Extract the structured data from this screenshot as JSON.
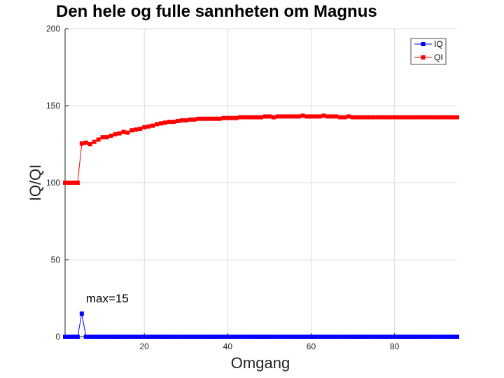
{
  "chart_data": {
    "type": "line",
    "title": "Den hele og fulle sannheten om Magnus",
    "xlabel": "Omgang",
    "ylabel": "IQ/QI",
    "xlim": [
      1,
      95
    ],
    "ylim": [
      0,
      200
    ],
    "xticks": [
      20,
      40,
      60,
      80
    ],
    "yticks": [
      0,
      50,
      100,
      150,
      200
    ],
    "grid": true,
    "legend_position": "top-right",
    "annotation": {
      "text": "max=15",
      "x": 5,
      "y": 15
    },
    "series": [
      {
        "name": "IQ",
        "color": "#0000ff",
        "marker": "square",
        "values": [
          0,
          0,
          0,
          0,
          15,
          0,
          0,
          0,
          0,
          0,
          0,
          0,
          0,
          0,
          0,
          0,
          0,
          0,
          0,
          0,
          0,
          0,
          0,
          0,
          0,
          0,
          0,
          0,
          0,
          0,
          0,
          0,
          0,
          0,
          0,
          0,
          0,
          0,
          0,
          0,
          0,
          0,
          0,
          0,
          0,
          0,
          0,
          0,
          0,
          0,
          0,
          0,
          0,
          0,
          0,
          0,
          0,
          0,
          0,
          0,
          0,
          0,
          0,
          0,
          0,
          0,
          0,
          0,
          0,
          0,
          0,
          0,
          0,
          0,
          0,
          0,
          0,
          0,
          0,
          0,
          0,
          0,
          0,
          0,
          0,
          0,
          0,
          0,
          0,
          0,
          0,
          0,
          0,
          0,
          0
        ]
      },
      {
        "name": "QI",
        "color": "#ff0000",
        "marker": "square",
        "values": [
          100,
          100,
          100,
          100,
          125.5,
          126,
          125,
          126.5,
          128,
          129.5,
          129.5,
          130.5,
          131.5,
          132,
          133,
          132.5,
          134,
          134.5,
          135,
          136,
          136.5,
          137,
          138,
          138.5,
          139,
          139.5,
          139.5,
          140,
          140.5,
          140.5,
          141,
          141,
          141.5,
          141.5,
          141.5,
          141.5,
          141.5,
          141.5,
          142,
          142,
          142,
          142,
          142.5,
          142.5,
          142.5,
          142.5,
          142.5,
          142.5,
          143,
          143,
          142.5,
          143,
          143,
          143,
          143,
          143,
          143,
          143.5,
          143,
          143,
          143,
          143,
          143.5,
          143,
          143,
          143,
          142.5,
          142.5,
          143,
          142.5,
          142.5,
          142.5,
          142.5,
          142.5,
          142.5,
          142.5,
          142.5,
          142.5,
          142.5,
          142.5,
          142.5,
          142.5,
          142.5,
          142.5,
          142.5,
          142.5,
          142.5,
          142.5,
          142.5,
          142.5,
          142.5,
          142.5,
          142.5,
          142.5,
          142.5
        ]
      }
    ]
  }
}
